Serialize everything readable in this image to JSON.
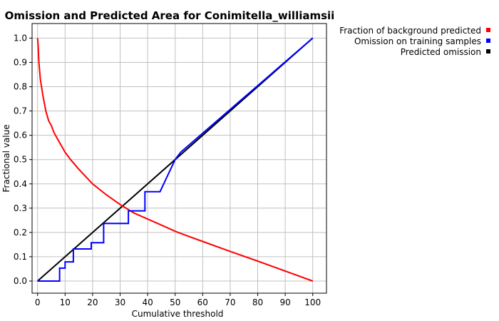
{
  "chart_data": {
    "type": "line",
    "title": "Omission and Predicted Area for Conimitella_williamsii",
    "xlabel": "Cumulative threshold",
    "ylabel": "Fractional value",
    "xlim": [
      -2,
      105
    ],
    "ylim": [
      -0.05,
      1.06
    ],
    "xticks": [
      0,
      10,
      20,
      30,
      40,
      50,
      60,
      70,
      80,
      90,
      100
    ],
    "yticks": [
      0.0,
      0.1,
      0.2,
      0.3,
      0.4,
      0.5,
      0.6,
      0.7,
      0.8,
      0.9,
      1.0
    ],
    "ytick_labels": [
      "0.0",
      "0.1",
      "0.2",
      "0.3",
      "0.4",
      "0.5",
      "0.6",
      "0.7",
      "0.8",
      "0.9",
      "1.0"
    ],
    "grid": true,
    "legend_position": "top-right-outside",
    "series": [
      {
        "name": "Fraction of background predicted",
        "color": "#ff0000",
        "points": [
          [
            0,
            1.0
          ],
          [
            0.2,
            0.97
          ],
          [
            0.5,
            0.9
          ],
          [
            1,
            0.83
          ],
          [
            2,
            0.76
          ],
          [
            3,
            0.7
          ],
          [
            4,
            0.66
          ],
          [
            5,
            0.64
          ],
          [
            6,
            0.61
          ],
          [
            8,
            0.57
          ],
          [
            10,
            0.53
          ],
          [
            12,
            0.5
          ],
          [
            15,
            0.46
          ],
          [
            20,
            0.4
          ],
          [
            25,
            0.355
          ],
          [
            30,
            0.315
          ],
          [
            35,
            0.28
          ],
          [
            40,
            0.255
          ],
          [
            45,
            0.23
          ],
          [
            50,
            0.205
          ],
          [
            52,
            0.196
          ],
          [
            60,
            0.163
          ],
          [
            70,
            0.122
          ],
          [
            80,
            0.082
          ],
          [
            90,
            0.041
          ],
          [
            100,
            0.0
          ]
        ]
      },
      {
        "name": "Omission on training samples",
        "color": "#0000ff",
        "points": [
          [
            0,
            0.0
          ],
          [
            8,
            0.0
          ],
          [
            8,
            0.053
          ],
          [
            10,
            0.053
          ],
          [
            10,
            0.079
          ],
          [
            13,
            0.079
          ],
          [
            13,
            0.132
          ],
          [
            19.5,
            0.132
          ],
          [
            19.5,
            0.158
          ],
          [
            24,
            0.158
          ],
          [
            24,
            0.237
          ],
          [
            33,
            0.237
          ],
          [
            33,
            0.289
          ],
          [
            39,
            0.289
          ],
          [
            39,
            0.368
          ],
          [
            44.5,
            0.368
          ],
          [
            50,
            0.5
          ],
          [
            52,
            0.53
          ],
          [
            100,
            1.0
          ]
        ]
      },
      {
        "name": "Predicted omission",
        "color": "#000000",
        "points": [
          [
            0,
            0.0
          ],
          [
            100,
            1.0
          ]
        ]
      }
    ]
  }
}
